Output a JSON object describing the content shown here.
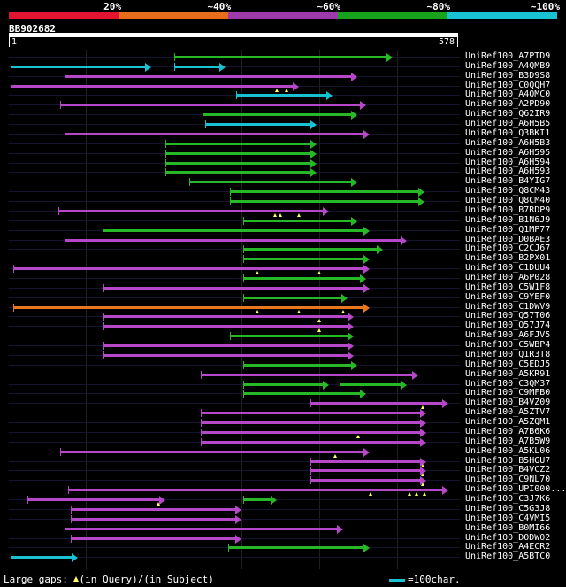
{
  "identity_legend": [
    {
      "label": "20%",
      "color": "#e3142f"
    },
    {
      "label": "~40%",
      "color": "#e86c1b"
    },
    {
      "label": "~60%",
      "color": "#9b3aa8"
    },
    {
      "label": "~80%",
      "color": "#17a31b"
    },
    {
      "label": "~100%",
      "color": "#19c2d2"
    }
  ],
  "query": {
    "id": "BB902682",
    "start": "1",
    "end": "578",
    "length": 578
  },
  "colors": {
    "purple": "#b647c8",
    "green": "#27b827",
    "cyan": "#19c2d2",
    "orange": "#e8781e",
    "gap_marker": "#ffff66",
    "row_line": "#14142e",
    "grid_line": "#1f1f1f"
  },
  "hits": [
    {
      "name": "UniRef100_A7PTD9",
      "segs": [
        {
          "s": 213,
          "e": 494,
          "c": "green"
        }
      ],
      "gaps": []
    },
    {
      "name": "UniRef100_A4QMB9",
      "segs": [
        {
          "s": 3,
          "e": 184,
          "c": "cyan"
        },
        {
          "s": 213,
          "e": 279,
          "c": "cyan"
        }
      ],
      "gaps": []
    },
    {
      "name": "UniRef100_B3D9S8",
      "segs": [
        {
          "s": 73,
          "e": 448,
          "c": "purple"
        }
      ],
      "gaps": []
    },
    {
      "name": "UniRef100_C0QQH7",
      "segs": [
        {
          "s": 3,
          "e": 373,
          "c": "purple"
        }
      ],
      "gaps": [
        345,
        358
      ]
    },
    {
      "name": "UniRef100_A4QMC0",
      "segs": [
        {
          "s": 293,
          "e": 417,
          "c": "cyan"
        }
      ],
      "gaps": []
    },
    {
      "name": "UniRef100_A2PD90",
      "segs": [
        {
          "s": 67,
          "e": 460,
          "c": "purple"
        }
      ],
      "gaps": []
    },
    {
      "name": "UniRef100_Q62IR9",
      "segs": [
        {
          "s": 250,
          "e": 448,
          "c": "green"
        }
      ],
      "gaps": []
    },
    {
      "name": "UniRef100_A6H5B5",
      "segs": [
        {
          "s": 253,
          "e": 396,
          "c": "cyan"
        }
      ],
      "gaps": []
    },
    {
      "name": "UniRef100_Q3BKI1",
      "segs": [
        {
          "s": 73,
          "e": 464,
          "c": "purple"
        }
      ],
      "gaps": []
    },
    {
      "name": "UniRef100_A6H5B3",
      "segs": [
        {
          "s": 202,
          "e": 396,
          "c": "green"
        }
      ],
      "gaps": []
    },
    {
      "name": "UniRef100_A6H595",
      "segs": [
        {
          "s": 202,
          "e": 396,
          "c": "green"
        }
      ],
      "gaps": []
    },
    {
      "name": "UniRef100_A6H594",
      "segs": [
        {
          "s": 202,
          "e": 396,
          "c": "green"
        }
      ],
      "gaps": []
    },
    {
      "name": "UniRef100_A6H593",
      "segs": [
        {
          "s": 202,
          "e": 396,
          "c": "green"
        }
      ],
      "gaps": []
    },
    {
      "name": "UniRef100_B4YIG7",
      "segs": [
        {
          "s": 233,
          "e": 448,
          "c": "green"
        }
      ],
      "gaps": []
    },
    {
      "name": "UniRef100_Q8CM43",
      "segs": [
        {
          "s": 285,
          "e": 535,
          "c": "green"
        }
      ],
      "gaps": []
    },
    {
      "name": "UniRef100_Q8CM40",
      "segs": [
        {
          "s": 285,
          "e": 535,
          "c": "green"
        }
      ],
      "gaps": []
    },
    {
      "name": "UniRef100_B7RDP9",
      "segs": [
        {
          "s": 65,
          "e": 412,
          "c": "purple"
        }
      ],
      "gaps": [
        343,
        350,
        373
      ]
    },
    {
      "name": "UniRef100_B1N6J9",
      "segs": [
        {
          "s": 302,
          "e": 448,
          "c": "green"
        }
      ],
      "gaps": []
    },
    {
      "name": "UniRef100_Q1MP77",
      "segs": [
        {
          "s": 121,
          "e": 464,
          "c": "green"
        }
      ],
      "gaps": []
    },
    {
      "name": "UniRef100_D0BAE3",
      "segs": [
        {
          "s": 73,
          "e": 512,
          "c": "purple"
        }
      ],
      "gaps": []
    },
    {
      "name": "UniRef100_C2CJ67",
      "segs": [
        {
          "s": 302,
          "e": 482,
          "c": "green"
        }
      ],
      "gaps": []
    },
    {
      "name": "UniRef100_B2PX01",
      "segs": [
        {
          "s": 302,
          "e": 464,
          "c": "green"
        }
      ],
      "gaps": []
    },
    {
      "name": "UniRef100_C1DUU4",
      "segs": [
        {
          "s": 7,
          "e": 464,
          "c": "purple"
        }
      ],
      "gaps": [
        320,
        400
      ]
    },
    {
      "name": "UniRef100_A6P028",
      "segs": [
        {
          "s": 302,
          "e": 460,
          "c": "green"
        }
      ],
      "gaps": []
    },
    {
      "name": "UniRef100_C5W1F8",
      "segs": [
        {
          "s": 123,
          "e": 464,
          "c": "purple"
        }
      ],
      "gaps": []
    },
    {
      "name": "UniRef100_C9YEF0",
      "segs": [
        {
          "s": 302,
          "e": 436,
          "c": "green"
        }
      ],
      "gaps": []
    },
    {
      "name": "UniRef100_C1DWV9",
      "segs": [
        {
          "s": 7,
          "e": 464,
          "c": "orange"
        }
      ],
      "gaps": [
        320,
        373,
        430
      ]
    },
    {
      "name": "UniRef100_Q57T06",
      "segs": [
        {
          "s": 123,
          "e": 444,
          "c": "purple"
        }
      ],
      "gaps": [
        400
      ]
    },
    {
      "name": "UniRef100_Q57J74",
      "segs": [
        {
          "s": 123,
          "e": 444,
          "c": "purple"
        }
      ],
      "gaps": [
        400
      ]
    },
    {
      "name": "UniRef100_A6FJV5",
      "segs": [
        {
          "s": 285,
          "e": 444,
          "c": "green"
        }
      ],
      "gaps": []
    },
    {
      "name": "UniRef100_C5WBP4",
      "segs": [
        {
          "s": 123,
          "e": 444,
          "c": "purple"
        }
      ],
      "gaps": []
    },
    {
      "name": "UniRef100_Q1R3T8",
      "segs": [
        {
          "s": 123,
          "e": 444,
          "c": "purple"
        }
      ],
      "gaps": []
    },
    {
      "name": "UniRef100_C5EDJ5",
      "segs": [
        {
          "s": 302,
          "e": 448,
          "c": "green"
        }
      ],
      "gaps": []
    },
    {
      "name": "UniRef100_A5KR91",
      "segs": [
        {
          "s": 247,
          "e": 527,
          "c": "purple"
        }
      ],
      "gaps": []
    },
    {
      "name": "UniRef100_C3QM37",
      "segs": [
        {
          "s": 302,
          "e": 412,
          "c": "green"
        },
        {
          "s": 426,
          "e": 512,
          "c": "green"
        }
      ],
      "gaps": []
    },
    {
      "name": "UniRef100_C9MFB0",
      "segs": [
        {
          "s": 302,
          "e": 460,
          "c": "green"
        }
      ],
      "gaps": []
    },
    {
      "name": "UniRef100_B4VZ09",
      "segs": [
        {
          "s": 388,
          "e": 565,
          "c": "purple"
        }
      ],
      "gaps": [
        532
      ]
    },
    {
      "name": "UniRef100_A5ZTV7",
      "segs": [
        {
          "s": 247,
          "e": 537,
          "c": "purple"
        }
      ],
      "gaps": []
    },
    {
      "name": "UniRef100_A5ZQM1",
      "segs": [
        {
          "s": 247,
          "e": 537,
          "c": "purple"
        }
      ],
      "gaps": []
    },
    {
      "name": "UniRef100_A7B6K6",
      "segs": [
        {
          "s": 247,
          "e": 537,
          "c": "purple"
        }
      ],
      "gaps": [
        450
      ]
    },
    {
      "name": "UniRef100_A7B5W9",
      "segs": [
        {
          "s": 247,
          "e": 537,
          "c": "purple"
        }
      ],
      "gaps": []
    },
    {
      "name": "UniRef100_A5KL06",
      "segs": [
        {
          "s": 67,
          "e": 464,
          "c": "purple"
        }
      ],
      "gaps": [
        420
      ]
    },
    {
      "name": "UniRef100_B5HGU7",
      "segs": [
        {
          "s": 388,
          "e": 537,
          "c": "purple"
        }
      ],
      "gaps": [
        532
      ]
    },
    {
      "name": "UniRef100_B4VCZ2",
      "segs": [
        {
          "s": 388,
          "e": 537,
          "c": "purple"
        }
      ],
      "gaps": [
        532
      ]
    },
    {
      "name": "UniRef100_C9NL70",
      "segs": [
        {
          "s": 388,
          "e": 537,
          "c": "purple"
        }
      ],
      "gaps": [
        532
      ]
    },
    {
      "name": "UniRef100_UPI000...",
      "segs": [
        {
          "s": 77,
          "e": 565,
          "c": "purple"
        }
      ],
      "gaps": [
        465,
        515,
        525,
        535
      ]
    },
    {
      "name": "UniRef100_C3J7K6",
      "segs": [
        {
          "s": 25,
          "e": 202,
          "c": "purple"
        },
        {
          "s": 302,
          "e": 345,
          "c": "green"
        }
      ],
      "gaps": [
        193
      ]
    },
    {
      "name": "UniRef100_C5G3J8",
      "segs": [
        {
          "s": 80,
          "e": 300,
          "c": "purple"
        }
      ],
      "gaps": []
    },
    {
      "name": "UniRef100_C4VMI5",
      "segs": [
        {
          "s": 80,
          "e": 300,
          "c": "purple"
        }
      ],
      "gaps": []
    },
    {
      "name": "UniRef100_B0MI66",
      "segs": [
        {
          "s": 73,
          "e": 430,
          "c": "purple"
        }
      ],
      "gaps": []
    },
    {
      "name": "UniRef100_D0DW02",
      "segs": [
        {
          "s": 80,
          "e": 300,
          "c": "purple"
        }
      ],
      "gaps": []
    },
    {
      "name": "UniRef100_A4ECR2",
      "segs": [
        {
          "s": 283,
          "e": 464,
          "c": "green"
        }
      ],
      "gaps": []
    },
    {
      "name": "UniRef100_A5BTC0",
      "segs": [
        {
          "s": 3,
          "e": 90,
          "c": "cyan"
        }
      ],
      "gaps": []
    }
  ],
  "footer": {
    "large_gaps_prefix": "Large gaps:",
    "in_query": "(in Query)/",
    "in_subject": "(in Subject)",
    "scale_label": "=100char."
  }
}
